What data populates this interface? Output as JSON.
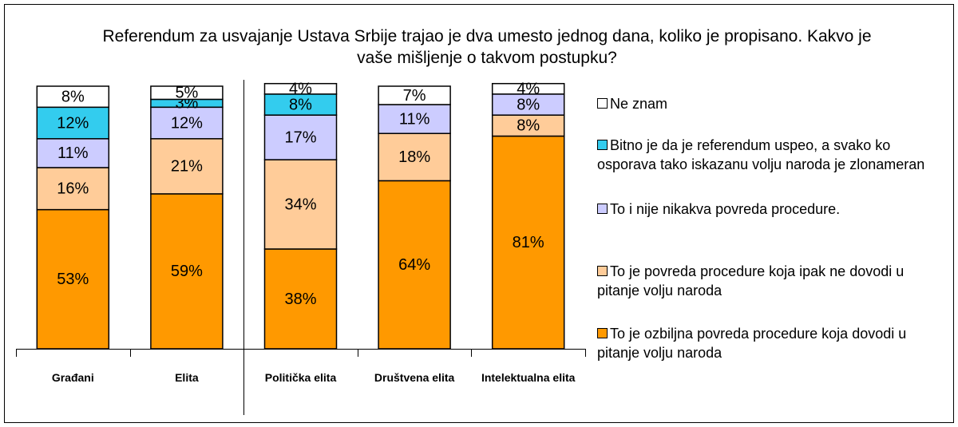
{
  "chart_data": {
    "type": "stacked_bar",
    "title": "Referendum za usvajanje Ustava Srbije trajao je dva umesto jednog dana, koliko je propisano. Kakvo je vaše mišljenje o takvom postupku?",
    "categories": [
      "Građani",
      "Elita",
      "Politička elita",
      "Društvena elita",
      "Intelektualna elita"
    ],
    "ylim": [
      0,
      100
    ],
    "series": [
      {
        "name": "To je ozbiljna povreda procedure koja dovodi u pitanje volju  naroda",
        "color": "#FF9900",
        "values": [
          53,
          59,
          38,
          64,
          81
        ],
        "value_labels": [
          "53%",
          "59%",
          "38%",
          "64%",
          "81%"
        ]
      },
      {
        "name": "To je povreda procedure koja ipak ne dovodi u pitanje volju naroda",
        "color": "#FFCC99",
        "values": [
          16,
          21,
          34,
          18,
          8
        ],
        "value_labels": [
          "16%",
          "21%",
          "34%",
          "18%",
          "8%"
        ]
      },
      {
        "name": "To i nije nikakva povreda procedure.",
        "color": "#CCCCFF",
        "values": [
          11,
          12,
          17,
          11,
          8
        ],
        "value_labels": [
          "11%",
          "12%",
          "17%",
          "11%",
          "8%"
        ]
      },
      {
        "name": "Bitno je da je referendum uspeo, a svako ko osporava tako iskazanu volju naroda je zlonameran",
        "color": "#33CCEE",
        "values": [
          12,
          3,
          8,
          null,
          null
        ],
        "value_labels": [
          "12%",
          "3%",
          "8%",
          null,
          null
        ]
      },
      {
        "name": "Ne znam",
        "color": "#FFFFFF",
        "values": [
          8,
          5,
          4,
          7,
          4
        ],
        "value_labels": [
          "8%",
          "5%",
          "4%",
          "7%",
          "4%"
        ]
      }
    ]
  }
}
